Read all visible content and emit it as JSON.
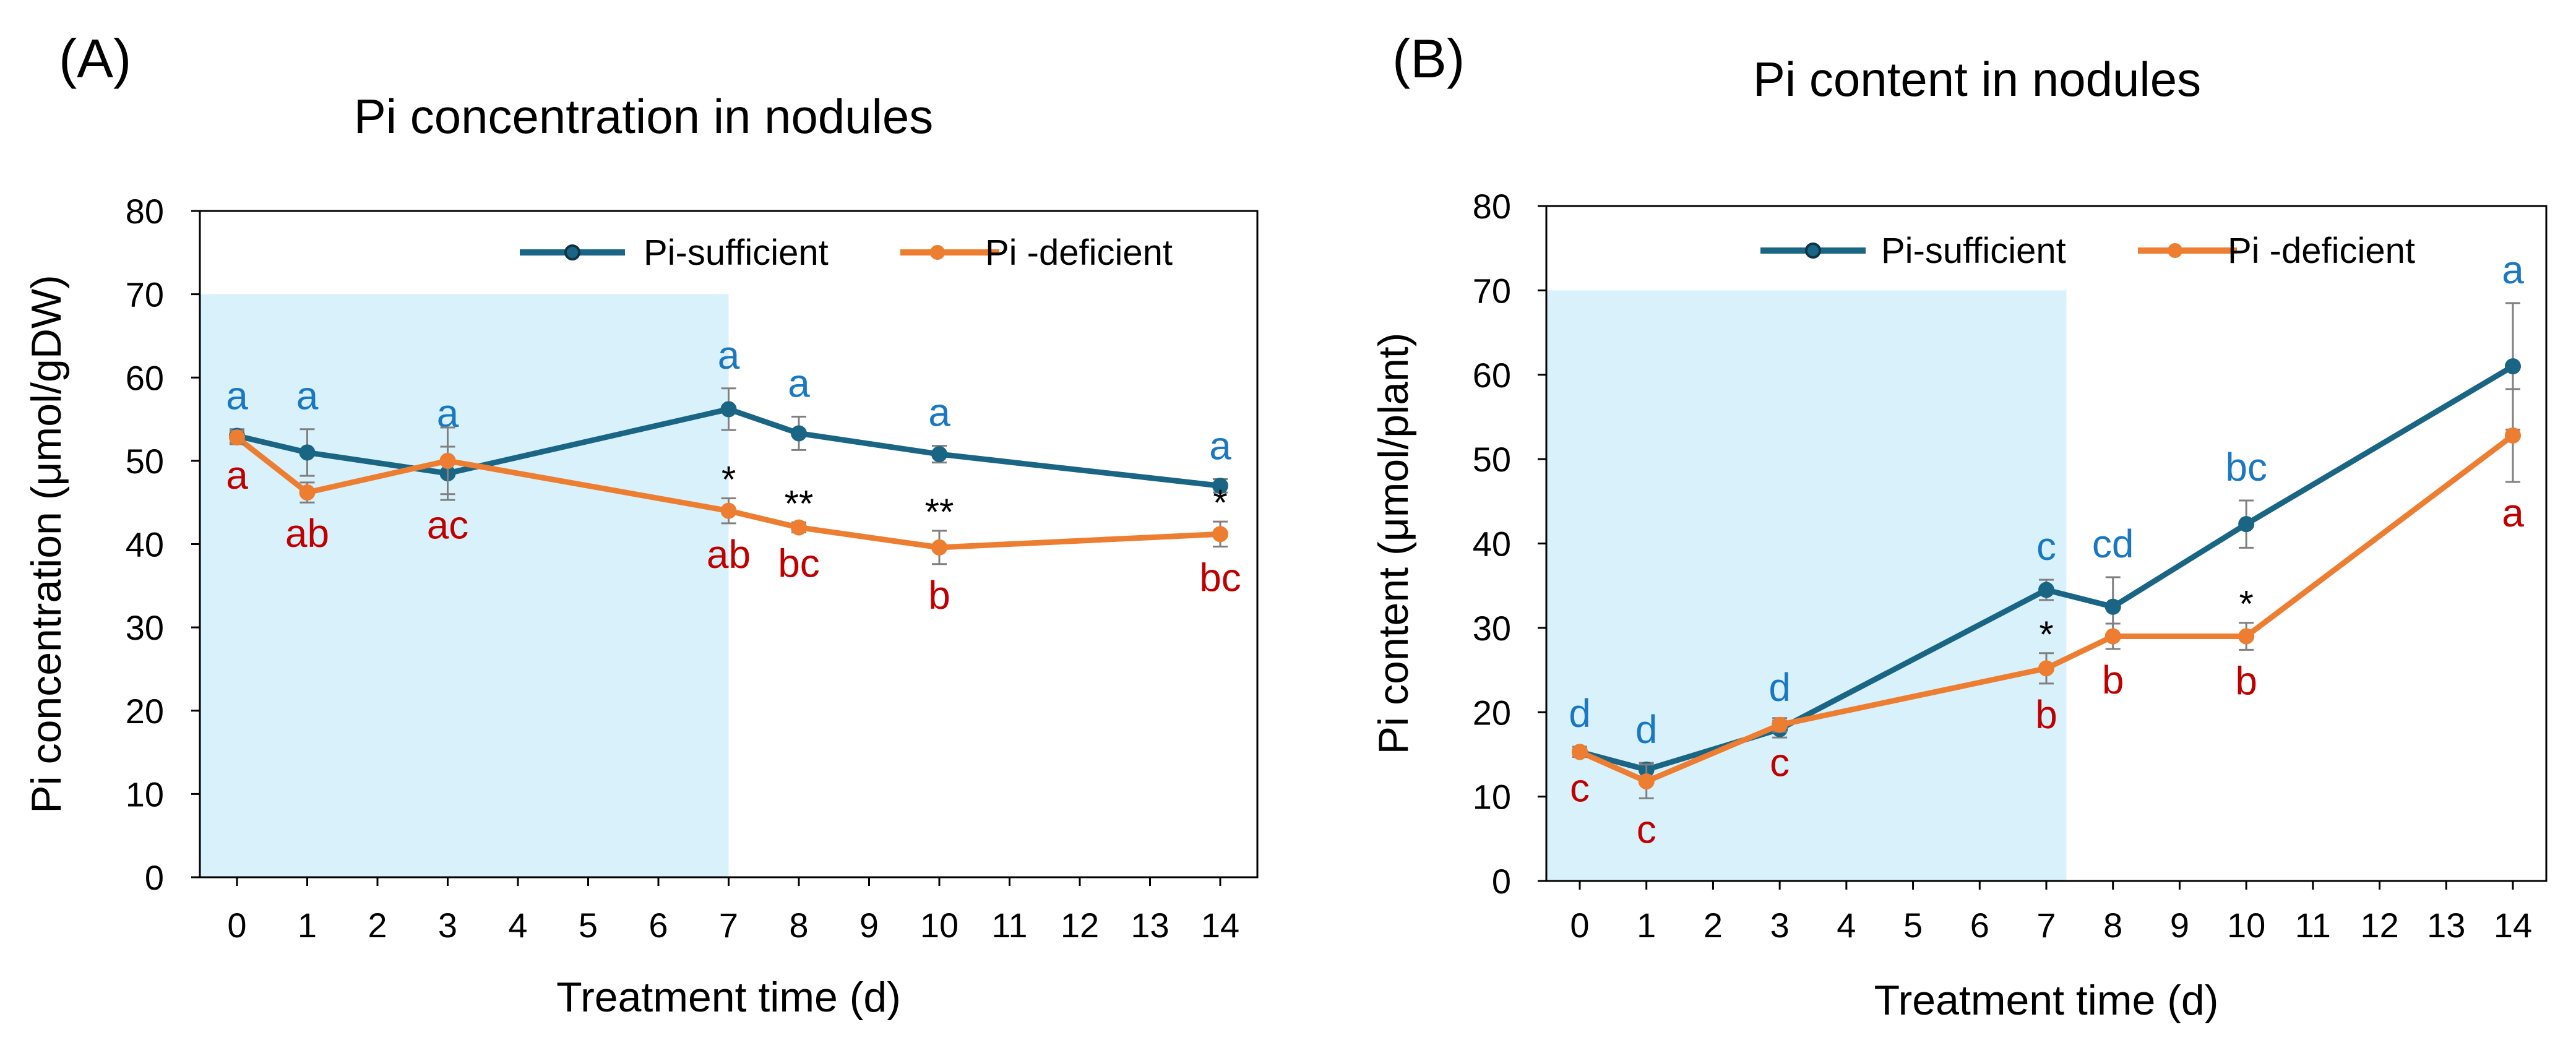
{
  "chart_data": [
    {
      "type": "line",
      "panel_label": "(A)",
      "title": "Pi concentration in nodules",
      "xlabel": "Treatment time (d)",
      "ylabel": "Pi concentration (μmol/gDW)",
      "xlim": [
        0,
        14
      ],
      "ylim": [
        0,
        80
      ],
      "x_ticks": [
        0,
        1,
        2,
        3,
        4,
        5,
        6,
        7,
        8,
        9,
        10,
        11,
        12,
        13,
        14
      ],
      "y_ticks": [
        0,
        10,
        20,
        30,
        40,
        50,
        60,
        70,
        80
      ],
      "shaded_region": {
        "x": [
          0,
          7
        ],
        "y": [
          0,
          70
        ],
        "color": "#d8f1fb"
      },
      "legend_position": "top-right",
      "series": [
        {
          "name": "Pi-sufficient",
          "color": "#1a6584",
          "x": [
            0,
            1,
            3,
            7,
            8,
            10,
            14
          ],
          "y": [
            53,
            51,
            48.5,
            56.2,
            53.3,
            50.8,
            47
          ],
          "error": [
            0.8,
            2.8,
            3.2,
            2.5,
            2.0,
            1.0,
            0.8
          ],
          "letters": [
            "a",
            "a",
            "a",
            "a",
            "a",
            "a",
            "a"
          ],
          "letter_color": "#1a78c2"
        },
        {
          "name": "Pi  -deficient",
          "color": "#ed7d31",
          "x": [
            0,
            1,
            3,
            7,
            8,
            10,
            14
          ],
          "y": [
            52.8,
            46.2,
            50,
            44,
            42,
            39.6,
            41.2
          ],
          "error": [
            0.8,
            1.2,
            4.0,
            1.5,
            0.6,
            2.0,
            1.5
          ],
          "letters": [
            "a",
            "ab",
            "ac",
            "ab",
            "bc",
            "b",
            "bc"
          ],
          "letter_color": "#c00000"
        }
      ],
      "significance": [
        {
          "x": 7,
          "label": "*"
        },
        {
          "x": 8,
          "label": "**"
        },
        {
          "x": 10,
          "label": "**"
        },
        {
          "x": 14,
          "label": "*"
        }
      ]
    },
    {
      "type": "line",
      "panel_label": "(B)",
      "title": "Pi content in nodules",
      "xlabel": "Treatment time (d)",
      "ylabel": "Pi content (μmol/plant)",
      "xlim": [
        0,
        14
      ],
      "ylim": [
        0,
        80
      ],
      "x_ticks": [
        0,
        1,
        2,
        3,
        4,
        5,
        6,
        7,
        8,
        9,
        10,
        11,
        12,
        13,
        14
      ],
      "y_ticks": [
        0,
        10,
        20,
        30,
        40,
        50,
        60,
        70,
        80
      ],
      "shaded_region": {
        "x": [
          0,
          7.3
        ],
        "y": [
          0,
          70
        ],
        "color": "#d8f1fb"
      },
      "legend_position": "top-right",
      "series": [
        {
          "name": "Pi-sufficient",
          "color": "#1a6584",
          "x": [
            0,
            1,
            3,
            7,
            8,
            10,
            14
          ],
          "y": [
            15.3,
            13.2,
            18,
            34.5,
            32.5,
            42.3,
            61
          ],
          "error": [
            0.6,
            0.8,
            1.0,
            1.2,
            3.5,
            2.8,
            7.5
          ],
          "letters": [
            "d",
            "d",
            "d",
            "c",
            "cd",
            "bc",
            "a"
          ],
          "letter_color": "#1a78c2"
        },
        {
          "name": "Pi  -deficient",
          "color": "#ed7d31",
          "x": [
            0,
            1,
            3,
            7,
            8,
            10,
            14
          ],
          "y": [
            15.3,
            11.8,
            18.5,
            25.2,
            29,
            29,
            52.8
          ],
          "error": [
            0.6,
            2.0,
            0.8,
            1.8,
            1.5,
            1.6,
            5.5
          ],
          "letters": [
            "c",
            "c",
            "c",
            "b",
            "b",
            "b",
            "a"
          ],
          "letter_color": "#c00000"
        }
      ],
      "significance": [
        {
          "x": 7,
          "label": "*"
        },
        {
          "x": 10,
          "label": "*"
        }
      ]
    }
  ]
}
